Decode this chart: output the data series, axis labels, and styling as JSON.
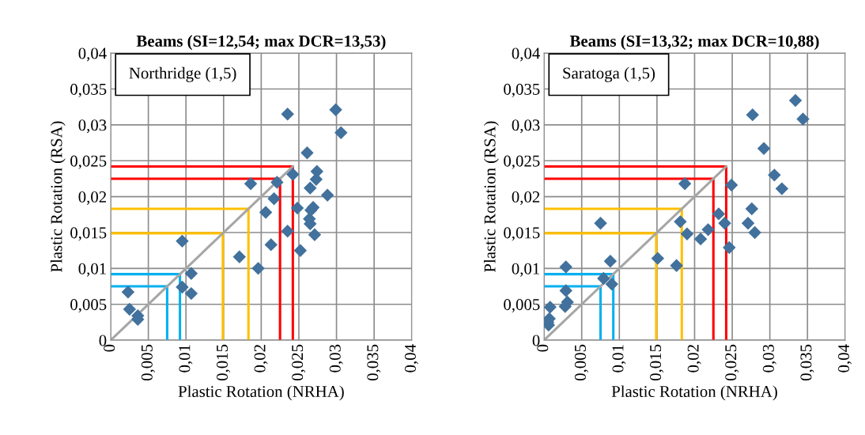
{
  "chart_data": [
    {
      "type": "scatter",
      "title": "Beams (SI=12,54; max DCR=13,53)",
      "xlabel": "Plastic Rotation (NRHA)",
      "ylabel": "Plastic Rotation (RSA)",
      "annotations": [
        "Northridge (1,5)"
      ],
      "xlim": [
        0,
        0.04
      ],
      "ylim": [
        0,
        0.04
      ],
      "xticks": [
        {
          "value": 0,
          "label": "0"
        },
        {
          "value": 0.005,
          "label": "0,005"
        },
        {
          "value": 0.01,
          "label": "0,01"
        },
        {
          "value": 0.015,
          "label": "0,015"
        },
        {
          "value": 0.02,
          "label": "0,02"
        },
        {
          "value": 0.025,
          "label": "0,025"
        },
        {
          "value": 0.03,
          "label": "0,03"
        },
        {
          "value": 0.035,
          "label": "0,035"
        },
        {
          "value": 0.04,
          "label": "0,04"
        }
      ],
      "yticks": [
        {
          "value": 0,
          "label": "0"
        },
        {
          "value": 0.005,
          "label": "0,005"
        },
        {
          "value": 0.01,
          "label": "0,01"
        },
        {
          "value": 0.015,
          "label": "0,015"
        },
        {
          "value": 0.02,
          "label": "0,02"
        },
        {
          "value": 0.025,
          "label": "0,025"
        },
        {
          "value": 0.03,
          "label": "0,03"
        },
        {
          "value": 0.035,
          "label": "0,035"
        },
        {
          "value": 0.04,
          "label": "0,04"
        }
      ],
      "grid": true,
      "marker": "diamond",
      "series": [
        {
          "type": "line",
          "color": "#ff0000",
          "marker": "none",
          "x": [
            0,
            0.0242,
            0.0242
          ],
          "values": [
            0.0242,
            0.0242,
            0
          ]
        },
        {
          "type": "line",
          "color": "#ff0000",
          "marker": "none",
          "x": [
            0,
            0.0225,
            0.0225
          ],
          "values": [
            0.0225,
            0.0225,
            0
          ]
        },
        {
          "type": "line",
          "color": "#ffc000",
          "marker": "none",
          "x": [
            0,
            0.0183,
            0.0183
          ],
          "values": [
            0.0183,
            0.0183,
            0
          ]
        },
        {
          "type": "line",
          "color": "#ffc000",
          "marker": "none",
          "x": [
            0,
            0.0149,
            0.0149
          ],
          "values": [
            0.0149,
            0.0149,
            0
          ]
        },
        {
          "type": "line",
          "color": "#00b0f0",
          "marker": "none",
          "x": [
            0,
            0.0092,
            0.0092
          ],
          "values": [
            0.0092,
            0.0092,
            0
          ]
        },
        {
          "type": "line",
          "color": "#00b0f0",
          "marker": "none",
          "x": [
            0,
            0.0075,
            0.0075
          ],
          "values": [
            0.0075,
            0.0075,
            0
          ]
        },
        {
          "type": "line",
          "color": "#a6a6a6",
          "marker": "none",
          "x": [
            0,
            0.0242
          ],
          "values": [
            0,
            0.0242
          ]
        },
        {
          "color": "#41719c",
          "x": [
            0.0235,
            0.0299,
            0.0306,
            0.0261,
            0.0274,
            0.0273,
            0.0265,
            0.0288,
            0.0242,
            0.0221,
            0.0186,
            0.0217,
            0.0206,
            0.0248,
            0.0269,
            0.0266,
            0.0264,
            0.0265,
            0.0235,
            0.0271,
            0.0213,
            0.0252,
            0.0171,
            0.0196,
            0.0095,
            0.0107,
            0.0095,
            0.0107,
            0.0023,
            0.0025,
            0.0036,
            0.0036
          ],
          "values": [
            0.0315,
            0.0321,
            0.0289,
            0.0261,
            0.0235,
            0.0224,
            0.0212,
            0.0202,
            0.0231,
            0.022,
            0.0218,
            0.0197,
            0.0178,
            0.0184,
            0.0185,
            0.0181,
            0.0169,
            0.0162,
            0.0152,
            0.0147,
            0.0133,
            0.0125,
            0.0116,
            0.01,
            0.0138,
            0.0093,
            0.0074,
            0.0065,
            0.0067,
            0.0043,
            0.0034,
            0.0029
          ]
        }
      ]
    },
    {
      "type": "scatter",
      "title": "Beams (SI=13,32; max DCR=10,88)",
      "xlabel": "Plastic Rotation (NRHA)",
      "ylabel": "Plastic Rotation (RSA)",
      "annotations": [
        "Saratoga (1,5)"
      ],
      "xlim": [
        0,
        0.04
      ],
      "ylim": [
        0,
        0.04
      ],
      "xticks": [
        {
          "value": 0,
          "label": "0"
        },
        {
          "value": 0.005,
          "label": "0,005"
        },
        {
          "value": 0.01,
          "label": "0,01"
        },
        {
          "value": 0.015,
          "label": "0,015"
        },
        {
          "value": 0.02,
          "label": "0,02"
        },
        {
          "value": 0.025,
          "label": "0,025"
        },
        {
          "value": 0.03,
          "label": "0,03"
        },
        {
          "value": 0.035,
          "label": "0,035"
        },
        {
          "value": 0.04,
          "label": "0,04"
        }
      ],
      "yticks": [
        {
          "value": 0,
          "label": "0"
        },
        {
          "value": 0.005,
          "label": "0,005"
        },
        {
          "value": 0.01,
          "label": "0,01"
        },
        {
          "value": 0.015,
          "label": "0,015"
        },
        {
          "value": 0.02,
          "label": "0,02"
        },
        {
          "value": 0.025,
          "label": "0,025"
        },
        {
          "value": 0.03,
          "label": "0,03"
        },
        {
          "value": 0.035,
          "label": "0,035"
        },
        {
          "value": 0.04,
          "label": "0,04"
        }
      ],
      "grid": true,
      "marker": "diamond",
      "series": [
        {
          "type": "line",
          "color": "#ff0000",
          "marker": "none",
          "x": [
            0,
            0.0242,
            0.0242
          ],
          "values": [
            0.0242,
            0.0242,
            0
          ]
        },
        {
          "type": "line",
          "color": "#ff0000",
          "marker": "none",
          "x": [
            0,
            0.0225,
            0.0225
          ],
          "values": [
            0.0225,
            0.0225,
            0
          ]
        },
        {
          "type": "line",
          "color": "#ffc000",
          "marker": "none",
          "x": [
            0,
            0.0183,
            0.0183
          ],
          "values": [
            0.0183,
            0.0183,
            0
          ]
        },
        {
          "type": "line",
          "color": "#ffc000",
          "marker": "none",
          "x": [
            0,
            0.0149,
            0.0149
          ],
          "values": [
            0.0149,
            0.0149,
            0
          ]
        },
        {
          "type": "line",
          "color": "#00b0f0",
          "marker": "none",
          "x": [
            0,
            0.0092,
            0.0092
          ],
          "values": [
            0.0092,
            0.0092,
            0
          ]
        },
        {
          "type": "line",
          "color": "#00b0f0",
          "marker": "none",
          "x": [
            0,
            0.0075,
            0.0075
          ],
          "values": [
            0.0075,
            0.0075,
            0
          ]
        },
        {
          "type": "line",
          "color": "#a6a6a6",
          "marker": "none",
          "x": [
            0,
            0.0242
          ],
          "values": [
            0,
            0.0242
          ]
        },
        {
          "color": "#41719c",
          "x": [
            0.0334,
            0.0277,
            0.0344,
            0.0292,
            0.0306,
            0.0316,
            0.0187,
            0.0249,
            0.0276,
            0.0232,
            0.0181,
            0.024,
            0.0271,
            0.0218,
            0.019,
            0.028,
            0.0208,
            0.0246,
            0.0075,
            0.0151,
            0.0176,
            0.0088,
            0.0029,
            0.0079,
            0.009,
            0.0029,
            0.0031,
            0.0028,
            0.0008,
            0.0007,
            0.0006,
            0.0005
          ],
          "values": [
            0.0334,
            0.0314,
            0.0308,
            0.0267,
            0.023,
            0.0211,
            0.0218,
            0.0216,
            0.0183,
            0.0176,
            0.0165,
            0.0163,
            0.0163,
            0.0154,
            0.0148,
            0.015,
            0.0141,
            0.0129,
            0.0163,
            0.0114,
            0.0104,
            0.011,
            0.0102,
            0.0086,
            0.0078,
            0.0069,
            0.0053,
            0.0047,
            0.0046,
            0.003,
            0.0021,
            0.0025
          ]
        }
      ]
    }
  ]
}
